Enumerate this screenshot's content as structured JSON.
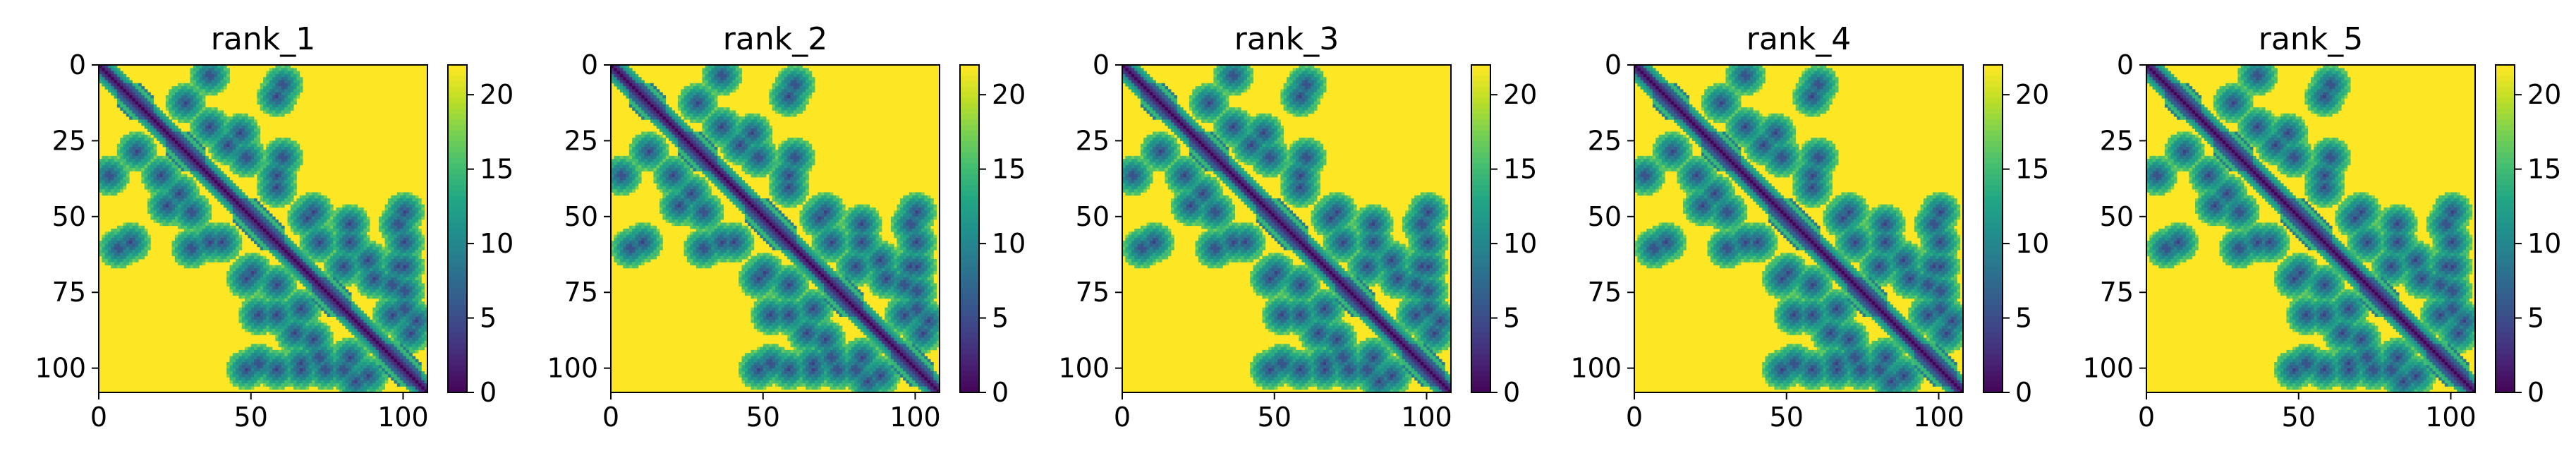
{
  "chart_data": [
    {
      "type": "heatmap",
      "title": "rank_1",
      "n": 108,
      "x_ticks": [
        0,
        50,
        100
      ],
      "y_ticks": [
        0,
        25,
        50,
        75,
        100
      ],
      "colorbar_ticks": [
        0,
        5,
        10,
        15,
        20
      ],
      "vmin": 0,
      "vmax": 22,
      "colormap": "viridis",
      "contact_cutoff": 8,
      "max_distance": 22,
      "structure": {
        "helices": [
          [
            6,
            17
          ],
          [
            22,
            34
          ],
          [
            44,
            60
          ],
          [
            70,
            82
          ],
          [
            92,
            105
          ]
        ],
        "off_diagonal_contacts": [
          [
            3,
            36
          ],
          [
            6,
            60
          ],
          [
            10,
            58
          ],
          [
            12,
            28
          ],
          [
            20,
            36
          ],
          [
            22,
            46
          ],
          [
            26,
            42
          ],
          [
            30,
            48
          ],
          [
            30,
            60
          ],
          [
            36,
            58
          ],
          [
            40,
            58
          ],
          [
            48,
            70
          ],
          [
            50,
            68
          ],
          [
            52,
            82
          ],
          [
            58,
            72
          ],
          [
            58,
            82
          ],
          [
            64,
            88
          ],
          [
            66,
            80
          ],
          [
            66,
            98
          ],
          [
            70,
            90
          ],
          [
            72,
            96
          ],
          [
            74,
            100
          ],
          [
            80,
            100
          ],
          [
            84,
            104
          ],
          [
            88,
            102
          ],
          [
            98,
            52
          ],
          [
            100,
            48
          ],
          [
            100,
            58
          ],
          [
            100,
            66
          ],
          [
            100,
            80
          ],
          [
            82,
            96
          ]
        ]
      }
    },
    {
      "type": "heatmap",
      "title": "rank_2",
      "n": 108,
      "x_ticks": [
        0,
        50,
        100
      ],
      "y_ticks": [
        0,
        25,
        50,
        75,
        100
      ],
      "colorbar_ticks": [
        0,
        5,
        10,
        15,
        20
      ],
      "vmin": 0,
      "vmax": 22,
      "colormap": "viridis",
      "contact_cutoff": 8,
      "max_distance": 22,
      "structure": {
        "helices": [
          [
            6,
            17
          ],
          [
            22,
            34
          ],
          [
            44,
            60
          ],
          [
            70,
            82
          ],
          [
            92,
            105
          ]
        ],
        "off_diagonal_contacts": [
          [
            3,
            36
          ],
          [
            6,
            60
          ],
          [
            10,
            58
          ],
          [
            12,
            28
          ],
          [
            20,
            36
          ],
          [
            22,
            46
          ],
          [
            26,
            42
          ],
          [
            30,
            48
          ],
          [
            30,
            60
          ],
          [
            36,
            58
          ],
          [
            40,
            58
          ],
          [
            48,
            70
          ],
          [
            50,
            68
          ],
          [
            52,
            82
          ],
          [
            58,
            72
          ],
          [
            58,
            82
          ],
          [
            64,
            88
          ],
          [
            66,
            80
          ],
          [
            66,
            98
          ],
          [
            70,
            90
          ],
          [
            72,
            96
          ],
          [
            74,
            100
          ],
          [
            80,
            100
          ],
          [
            84,
            104
          ],
          [
            88,
            102
          ],
          [
            98,
            52
          ],
          [
            100,
            48
          ],
          [
            100,
            58
          ],
          [
            100,
            66
          ],
          [
            100,
            80
          ],
          [
            82,
            96
          ]
        ]
      }
    },
    {
      "type": "heatmap",
      "title": "rank_3",
      "n": 108,
      "x_ticks": [
        0,
        50,
        100
      ],
      "y_ticks": [
        0,
        25,
        50,
        75,
        100
      ],
      "colorbar_ticks": [
        0,
        5,
        10,
        15,
        20
      ],
      "vmin": 0,
      "vmax": 22,
      "colormap": "viridis",
      "contact_cutoff": 8,
      "max_distance": 22,
      "structure": {
        "helices": [
          [
            6,
            17
          ],
          [
            22,
            34
          ],
          [
            44,
            60
          ],
          [
            70,
            82
          ],
          [
            92,
            105
          ]
        ],
        "off_diagonal_contacts": [
          [
            3,
            36
          ],
          [
            6,
            60
          ],
          [
            10,
            58
          ],
          [
            12,
            28
          ],
          [
            20,
            36
          ],
          [
            22,
            46
          ],
          [
            26,
            42
          ],
          [
            30,
            48
          ],
          [
            30,
            60
          ],
          [
            36,
            58
          ],
          [
            40,
            58
          ],
          [
            48,
            70
          ],
          [
            50,
            68
          ],
          [
            52,
            82
          ],
          [
            58,
            72
          ],
          [
            58,
            82
          ],
          [
            64,
            88
          ],
          [
            66,
            80
          ],
          [
            66,
            98
          ],
          [
            70,
            90
          ],
          [
            72,
            96
          ],
          [
            74,
            100
          ],
          [
            80,
            100
          ],
          [
            84,
            104
          ],
          [
            88,
            102
          ],
          [
            98,
            52
          ],
          [
            100,
            48
          ],
          [
            100,
            58
          ],
          [
            100,
            66
          ],
          [
            100,
            80
          ],
          [
            82,
            96
          ]
        ]
      }
    },
    {
      "type": "heatmap",
      "title": "rank_4",
      "n": 108,
      "x_ticks": [
        0,
        50,
        100
      ],
      "y_ticks": [
        0,
        25,
        50,
        75,
        100
      ],
      "colorbar_ticks": [
        0,
        5,
        10,
        15,
        20
      ],
      "vmin": 0,
      "vmax": 22,
      "colormap": "viridis",
      "contact_cutoff": 8,
      "max_distance": 22,
      "structure": {
        "helices": [
          [
            6,
            17
          ],
          [
            22,
            34
          ],
          [
            44,
            60
          ],
          [
            70,
            82
          ],
          [
            92,
            105
          ]
        ],
        "off_diagonal_contacts": [
          [
            3,
            36
          ],
          [
            6,
            60
          ],
          [
            10,
            58
          ],
          [
            12,
            28
          ],
          [
            20,
            36
          ],
          [
            22,
            46
          ],
          [
            26,
            42
          ],
          [
            30,
            48
          ],
          [
            30,
            60
          ],
          [
            36,
            58
          ],
          [
            40,
            58
          ],
          [
            48,
            70
          ],
          [
            50,
            68
          ],
          [
            52,
            82
          ],
          [
            58,
            72
          ],
          [
            58,
            82
          ],
          [
            64,
            88
          ],
          [
            66,
            80
          ],
          [
            66,
            98
          ],
          [
            70,
            90
          ],
          [
            72,
            96
          ],
          [
            74,
            100
          ],
          [
            80,
            100
          ],
          [
            84,
            104
          ],
          [
            88,
            102
          ],
          [
            98,
            52
          ],
          [
            100,
            48
          ],
          [
            100,
            58
          ],
          [
            100,
            66
          ],
          [
            100,
            80
          ],
          [
            82,
            96
          ]
        ]
      }
    },
    {
      "type": "heatmap",
      "title": "rank_5",
      "n": 108,
      "x_ticks": [
        0,
        50,
        100
      ],
      "y_ticks": [
        0,
        25,
        50,
        75,
        100
      ],
      "colorbar_ticks": [
        0,
        5,
        10,
        15,
        20
      ],
      "vmin": 0,
      "vmax": 22,
      "colormap": "viridis",
      "contact_cutoff": 8,
      "max_distance": 22,
      "structure": {
        "helices": [
          [
            6,
            17
          ],
          [
            22,
            34
          ],
          [
            44,
            60
          ],
          [
            70,
            82
          ],
          [
            92,
            105
          ]
        ],
        "off_diagonal_contacts": [
          [
            3,
            36
          ],
          [
            6,
            60
          ],
          [
            10,
            58
          ],
          [
            12,
            28
          ],
          [
            20,
            36
          ],
          [
            22,
            46
          ],
          [
            26,
            42
          ],
          [
            30,
            48
          ],
          [
            30,
            60
          ],
          [
            36,
            58
          ],
          [
            40,
            58
          ],
          [
            48,
            70
          ],
          [
            50,
            68
          ],
          [
            52,
            82
          ],
          [
            58,
            72
          ],
          [
            58,
            82
          ],
          [
            64,
            88
          ],
          [
            66,
            80
          ],
          [
            66,
            98
          ],
          [
            70,
            90
          ],
          [
            72,
            96
          ],
          [
            74,
            100
          ],
          [
            80,
            100
          ],
          [
            84,
            104
          ],
          [
            88,
            102
          ],
          [
            98,
            52
          ],
          [
            100,
            48
          ],
          [
            100,
            58
          ],
          [
            100,
            66
          ],
          [
            100,
            80
          ],
          [
            82,
            96
          ]
        ]
      }
    }
  ]
}
